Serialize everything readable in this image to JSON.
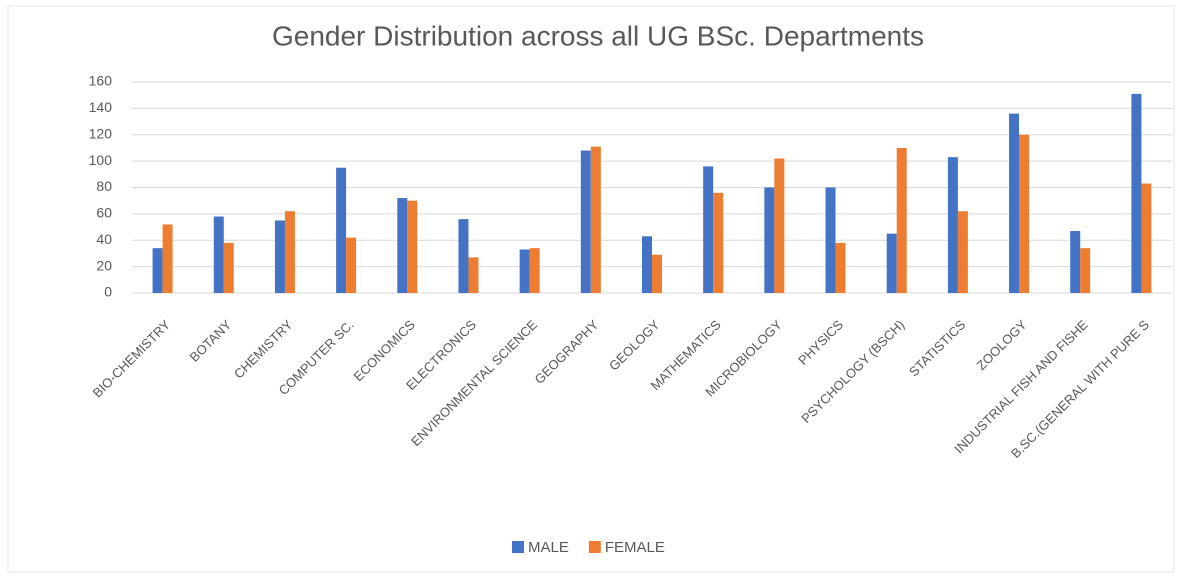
{
  "chart_data": {
    "type": "bar",
    "title": "Gender Distribution across all UG BSc. Departments",
    "categories": [
      "BIO-CHEMISTRY",
      "BOTANY",
      "CHEMISTRY",
      "COMPUTER SC.",
      "ECONOMICS",
      "ELECTRONICS",
      "ENVIRONMENTAL SCIENCE",
      "GEOGRAPHY",
      "GEOLOGY",
      "MATHEMATICS",
      "MICROBIOLOGY",
      "PHYSICS",
      "PSYCHOLOGY (BSCH)",
      "STATISTICS",
      "ZOOLOGY",
      "INDUSTRIAL FISH AND FISHE",
      "B.SC.(GENERAL WITH PURE S"
    ],
    "series": [
      {
        "name": "MALE",
        "color": "#4472c4",
        "values": [
          34,
          58,
          55,
          95,
          72,
          56,
          33,
          108,
          43,
          96,
          80,
          80,
          45,
          103,
          136,
          47,
          151
        ]
      },
      {
        "name": "FEMALE",
        "color": "#ed7d31",
        "values": [
          52,
          38,
          62,
          42,
          70,
          27,
          34,
          111,
          29,
          76,
          102,
          38,
          110,
          62,
          120,
          34,
          83
        ]
      }
    ],
    "ylim": [
      0,
      160
    ],
    "yticks": [
      0,
      20,
      40,
      60,
      80,
      100,
      120,
      140,
      160
    ],
    "grid": true,
    "legend": "bottom"
  }
}
